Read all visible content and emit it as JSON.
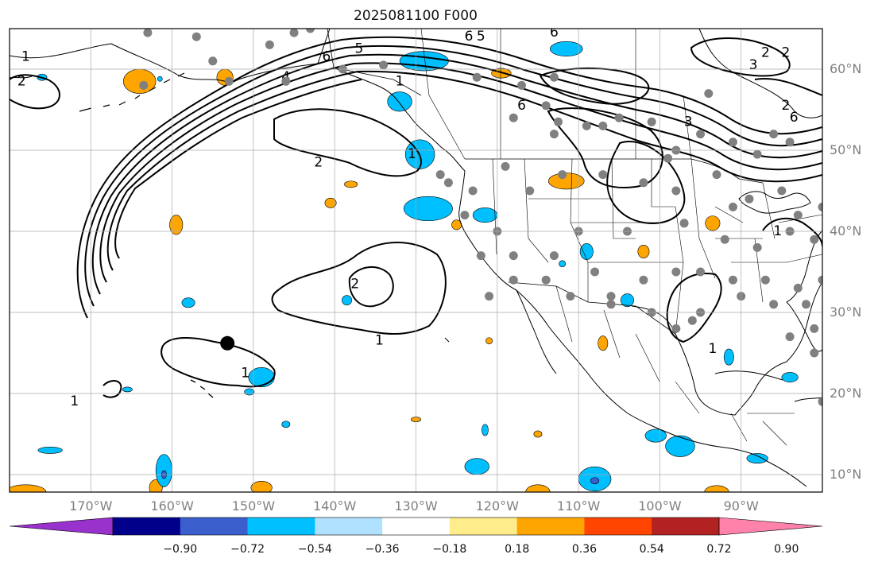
{
  "title": "2025081100 F000",
  "lat_labels": [
    {
      "deg": 60,
      "text": "60°N"
    },
    {
      "deg": 50,
      "text": "50°N"
    },
    {
      "deg": 40,
      "text": "40°N"
    },
    {
      "deg": 30,
      "text": "30°N"
    },
    {
      "deg": 20,
      "text": "20°N"
    },
    {
      "deg": 10,
      "text": "10°N"
    }
  ],
  "lon_labels": [
    {
      "deg": -170,
      "text": "170°W"
    },
    {
      "deg": -160,
      "text": "160°W"
    },
    {
      "deg": -150,
      "text": "150°W"
    },
    {
      "deg": -140,
      "text": "140°W"
    },
    {
      "deg": -130,
      "text": "130°W"
    },
    {
      "deg": -120,
      "text": "120°W"
    },
    {
      "deg": -110,
      "text": "110°W"
    },
    {
      "deg": -100,
      "text": "100°W"
    },
    {
      "deg": -90,
      "text": "90°W"
    }
  ],
  "map_extent": {
    "lon_min": -180,
    "lon_max": -80,
    "lat_min": 8,
    "lat_max": 65
  },
  "colorbar": {
    "colors": [
      "#9932cc",
      "#00008b",
      "#3a5fcd",
      "#00bfff",
      "#b0e2ff",
      "#ffffff",
      "#ffec8b",
      "#ffa500",
      "#ff4500",
      "#b22222",
      "#ff82ab"
    ],
    "ticks": [
      "−0.90",
      "−0.72",
      "−0.54",
      "−0.36",
      "−0.18",
      "0.18",
      "0.36",
      "0.54",
      "0.72",
      "0.90"
    ]
  },
  "contour_labels": [
    {
      "text": "1",
      "lon": -178,
      "lat": 61.5
    },
    {
      "text": "2",
      "lon": -178.5,
      "lat": 58.5
    },
    {
      "text": "4",
      "lon": -146,
      "lat": 59
    },
    {
      "text": "6",
      "lon": -141,
      "lat": 61.5
    },
    {
      "text": "5",
      "lon": -137,
      "lat": 62.5
    },
    {
      "text": "6",
      "lon": -123.5,
      "lat": 64
    },
    {
      "text": "5",
      "lon": -122,
      "lat": 64
    },
    {
      "text": "6",
      "lon": -113,
      "lat": 64.5
    },
    {
      "text": "1",
      "lon": -132,
      "lat": 58.5
    },
    {
      "text": "6",
      "lon": -117,
      "lat": 55.5
    },
    {
      "text": "2",
      "lon": -87,
      "lat": 62
    },
    {
      "text": "3",
      "lon": -88.5,
      "lat": 60.5
    },
    {
      "text": "2",
      "lon": -84.5,
      "lat": 62
    },
    {
      "text": "6",
      "lon": -83.5,
      "lat": 54
    },
    {
      "text": "3",
      "lon": -96.5,
      "lat": 53.5
    },
    {
      "text": "2",
      "lon": -84.5,
      "lat": 55.5
    },
    {
      "text": "2",
      "lon": -142,
      "lat": 48.5
    },
    {
      "text": "1",
      "lon": -130.5,
      "lat": 49.5
    },
    {
      "text": "2",
      "lon": -137.5,
      "lat": 33.5
    },
    {
      "text": "1",
      "lon": -134.5,
      "lat": 26.5
    },
    {
      "text": "1",
      "lon": -151,
      "lat": 22.5
    },
    {
      "text": "1",
      "lon": -172,
      "lat": 19
    },
    {
      "text": "1",
      "lon": -93.5,
      "lat": 25.5
    },
    {
      "text": "1",
      "lon": -85.5,
      "lat": 40
    }
  ],
  "station_dots": [
    [
      -163,
      64.5
    ],
    [
      -155,
      61
    ],
    [
      -148,
      63
    ],
    [
      -145,
      64.5
    ],
    [
      -163.5,
      58
    ],
    [
      -153,
      58.5
    ],
    [
      -146,
      58.5
    ],
    [
      -139,
      60
    ],
    [
      -134,
      60.5
    ],
    [
      -122.5,
      59
    ],
    [
      -117,
      58
    ],
    [
      -114,
      55.5
    ],
    [
      -112.5,
      53.5
    ],
    [
      -107,
      53
    ],
    [
      -105,
      54
    ],
    [
      -101,
      53.5
    ],
    [
      -95,
      52
    ],
    [
      -91,
      51
    ],
    [
      -88,
      49.5
    ],
    [
      -84,
      51
    ],
    [
      -127,
      47
    ],
    [
      -123,
      45
    ],
    [
      -119,
      48
    ],
    [
      -116,
      45
    ],
    [
      -112,
      47
    ],
    [
      -107,
      47
    ],
    [
      -102,
      46
    ],
    [
      -98,
      45
    ],
    [
      -91,
      43
    ],
    [
      -85,
      45
    ],
    [
      -83,
      42
    ],
    [
      -124,
      42
    ],
    [
      -120,
      40
    ],
    [
      -118,
      37
    ],
    [
      -113,
      37
    ],
    [
      -110,
      40
    ],
    [
      -104,
      40
    ],
    [
      -97,
      41
    ],
    [
      -92,
      39
    ],
    [
      -88,
      38
    ],
    [
      -84,
      40
    ],
    [
      -81,
      39
    ],
    [
      -122,
      37
    ],
    [
      -118,
      34
    ],
    [
      -114,
      34
    ],
    [
      -108,
      35
    ],
    [
      -106,
      32
    ],
    [
      -102,
      34
    ],
    [
      -98,
      35
    ],
    [
      -95,
      35
    ],
    [
      -91,
      34
    ],
    [
      -87,
      34
    ],
    [
      -83,
      33
    ],
    [
      -80,
      34
    ],
    [
      -111,
      32
    ],
    [
      -106,
      31
    ],
    [
      -101,
      30
    ],
    [
      -98,
      28
    ],
    [
      -95,
      30
    ],
    [
      -90,
      32
    ],
    [
      -86,
      31
    ],
    [
      -82,
      31
    ],
    [
      -81,
      28
    ],
    [
      -84,
      27
    ],
    [
      -81,
      25
    ],
    [
      -121,
      32
    ],
    [
      -157,
      64
    ],
    [
      -143,
      65
    ],
    [
      -99,
      49
    ],
    [
      -93,
      47
    ],
    [
      -89,
      44
    ],
    [
      -80,
      43
    ],
    [
      -86,
      52
    ],
    [
      -94,
      57
    ],
    [
      -113,
      59
    ],
    [
      -118,
      54
    ],
    [
      -126,
      46
    ],
    [
      -113,
      52
    ],
    [
      -109,
      53
    ],
    [
      -98,
      50
    ],
    [
      -80,
      19
    ],
    [
      -96,
      29
    ]
  ],
  "big_dot": {
    "lon": -153.2,
    "lat": 26.2
  },
  "filled_blobs": [
    {
      "c": "#ffa500",
      "lon": -164,
      "lat": 58.5,
      "r": [
        2,
        1.5
      ]
    },
    {
      "c": "#ffa500",
      "lon": -153.5,
      "lat": 59,
      "r": [
        1,
        1
      ]
    },
    {
      "c": "#ffa500",
      "lon": -119.5,
      "lat": 59.5,
      "r": [
        1.2,
        0.6
      ]
    },
    {
      "c": "#ffa500",
      "lon": -111.5,
      "lat": 46.2,
      "r": [
        2.2,
        1
      ]
    },
    {
      "c": "#ffa500",
      "lon": -93.5,
      "lat": 41,
      "r": [
        0.9,
        0.9
      ]
    },
    {
      "c": "#ffa500",
      "lon": -102,
      "lat": 37.5,
      "r": [
        0.7,
        0.8
      ]
    },
    {
      "c": "#ffa500",
      "lon": -140.5,
      "lat": 43.5,
      "r": [
        0.7,
        0.6
      ]
    },
    {
      "c": "#ffa500",
      "lon": -138,
      "lat": 45.8,
      "r": [
        0.8,
        0.4
      ]
    },
    {
      "c": "#ffa500",
      "lon": -159.5,
      "lat": 40.8,
      "r": [
        0.8,
        1.2
      ]
    },
    {
      "c": "#ffa500",
      "lon": -125,
      "lat": 40.8,
      "r": [
        0.6,
        0.6
      ]
    },
    {
      "c": "#ffa500",
      "lon": -107,
      "lat": 26.2,
      "r": [
        0.6,
        0.9
      ]
    },
    {
      "c": "#ffa500",
      "lon": -162,
      "lat": 8.5,
      "r": [
        0.8,
        1
      ]
    },
    {
      "c": "#ffa500",
      "lon": -149,
      "lat": 8.5,
      "r": [
        1.3,
        0.8
      ]
    },
    {
      "c": "#ffa500",
      "lon": -178,
      "lat": 8,
      "r": [
        2.5,
        0.9
      ]
    },
    {
      "c": "#ffa500",
      "lon": -115,
      "lat": 7.7,
      "r": [
        1.5,
        0.9
      ]
    },
    {
      "c": "#ffa500",
      "lon": -93,
      "lat": 7.8,
      "r": [
        1.5,
        0.8
      ]
    },
    {
      "c": "#ffa500",
      "lon": -115,
      "lat": 15,
      "r": [
        0.5,
        0.4
      ]
    },
    {
      "c": "#ffa500",
      "lon": -121,
      "lat": 26.5,
      "r": [
        0.4,
        0.4
      ]
    },
    {
      "c": "#ffa500",
      "lon": -130,
      "lat": 16.8,
      "r": [
        0.6,
        0.3
      ]
    },
    {
      "c": "#00bfff",
      "lon": -129,
      "lat": 61,
      "r": [
        3,
        1.2
      ]
    },
    {
      "c": "#00bfff",
      "lon": -132,
      "lat": 56,
      "r": [
        1.5,
        1.2
      ]
    },
    {
      "c": "#00bfff",
      "lon": -111.5,
      "lat": 62.5,
      "r": [
        2,
        0.9
      ]
    },
    {
      "c": "#00bfff",
      "lon": -128.5,
      "lat": 42.8,
      "r": [
        3,
        1.5
      ]
    },
    {
      "c": "#00bfff",
      "lon": -129.5,
      "lat": 49.5,
      "r": [
        1.8,
        1.8
      ]
    },
    {
      "c": "#00bfff",
      "lon": -121.5,
      "lat": 42,
      "r": [
        1.5,
        0.9
      ]
    },
    {
      "c": "#00bfff",
      "lon": -161.5,
      "lat": 58.8,
      "r": [
        0.3,
        0.3
      ]
    },
    {
      "c": "#00bfff",
      "lon": -176,
      "lat": 59,
      "r": [
        0.6,
        0.4
      ]
    },
    {
      "c": "#00bfff",
      "lon": -158,
      "lat": 31.2,
      "r": [
        0.8,
        0.6
      ]
    },
    {
      "c": "#00bfff",
      "lon": -149,
      "lat": 22,
      "r": [
        1.6,
        1.2
      ]
    },
    {
      "c": "#00bfff",
      "lon": -138.5,
      "lat": 31.5,
      "r": [
        0.6,
        0.6
      ]
    },
    {
      "c": "#00bfff",
      "lon": -109,
      "lat": 37.5,
      "r": [
        0.8,
        1
      ]
    },
    {
      "c": "#00bfff",
      "lon": -104,
      "lat": 31.5,
      "r": [
        0.8,
        0.8
      ]
    },
    {
      "c": "#00bfff",
      "lon": -91.5,
      "lat": 24.5,
      "r": [
        0.6,
        1
      ]
    },
    {
      "c": "#00bfff",
      "lon": -77.5,
      "lat": 14.5,
      "r": [
        1.5,
        1.8
      ]
    },
    {
      "c": "#00bfff",
      "lon": -161,
      "lat": 10.5,
      "r": [
        1,
        2
      ]
    },
    {
      "c": "#00bfff",
      "lon": -175,
      "lat": 13,
      "r": [
        1.5,
        0.4
      ]
    },
    {
      "c": "#00bfff",
      "lon": -122.5,
      "lat": 11,
      "r": [
        1.5,
        1
      ]
    },
    {
      "c": "#00bfff",
      "lon": -108,
      "lat": 9.5,
      "r": [
        2,
        1.5
      ]
    },
    {
      "c": "#00bfff",
      "lon": -97.5,
      "lat": 13.5,
      "r": [
        1.8,
        1.3
      ]
    },
    {
      "c": "#00bfff",
      "lon": -88,
      "lat": 12,
      "r": [
        1.3,
        0.6
      ]
    },
    {
      "c": "#00bfff",
      "lon": -100.5,
      "lat": 14.8,
      "r": [
        1.3,
        0.8
      ]
    },
    {
      "c": "#00bfff",
      "lon": -84,
      "lat": 22,
      "r": [
        1,
        0.6
      ]
    },
    {
      "c": "#00bfff",
      "lon": -165.5,
      "lat": 20.5,
      "r": [
        0.6,
        0.3
      ]
    },
    {
      "c": "#00bfff",
      "lon": -146,
      "lat": 16.2,
      "r": [
        0.5,
        0.4
      ]
    },
    {
      "c": "#00bfff",
      "lon": -150.5,
      "lat": 20.2,
      "r": [
        0.6,
        0.4
      ]
    },
    {
      "c": "#00bfff",
      "lon": -112,
      "lat": 36,
      "r": [
        0.4,
        0.4
      ]
    },
    {
      "c": "#00bfff",
      "lon": -121.5,
      "lat": 15.5,
      "r": [
        0.4,
        0.7
      ]
    },
    {
      "c": "#3a5fcd",
      "lon": -108,
      "lat": 9.3,
      "r": [
        0.5,
        0.4
      ]
    },
    {
      "c": "#3a5fcd",
      "lon": -161,
      "lat": 10,
      "r": [
        0.3,
        0.5
      ]
    }
  ]
}
